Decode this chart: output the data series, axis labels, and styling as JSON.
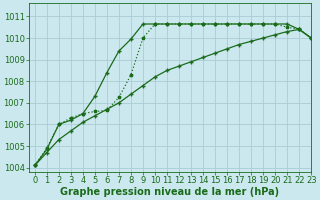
{
  "title": "Graphe pression niveau de la mer (hPa)",
  "background_color": "#cce8ef",
  "grid_color": "#aaccd4",
  "xlim": [
    -0.5,
    23
  ],
  "ylim": [
    1003.8,
    1011.6
  ],
  "yticks": [
    1004,
    1005,
    1006,
    1007,
    1008,
    1009,
    1010,
    1011
  ],
  "xticks": [
    0,
    1,
    2,
    3,
    4,
    5,
    6,
    7,
    8,
    9,
    10,
    11,
    12,
    13,
    14,
    15,
    16,
    17,
    18,
    19,
    20,
    21,
    22,
    23
  ],
  "line_dotted_x": [
    0,
    1,
    2,
    3,
    4,
    5,
    6,
    7,
    8,
    9,
    10,
    11,
    12,
    13,
    14,
    15,
    16,
    17,
    18,
    19,
    20,
    21,
    22,
    23
  ],
  "line_dotted_y": [
    1004.1,
    1004.9,
    1006.0,
    1006.3,
    1006.5,
    1006.6,
    1006.65,
    1007.25,
    1008.3,
    1010.0,
    1010.65,
    1010.65,
    1010.65,
    1010.65,
    1010.65,
    1010.65,
    1010.65,
    1010.65,
    1010.65,
    1010.65,
    1010.65,
    1010.5,
    1010.4,
    1010.0
  ],
  "line_solid1_x": [
    0,
    1,
    2,
    3,
    4,
    5,
    6,
    7,
    8,
    9,
    10,
    11,
    12,
    13,
    14,
    15,
    16,
    17,
    18,
    19,
    20,
    21,
    22,
    23
  ],
  "line_solid1_y": [
    1004.1,
    1004.85,
    1006.0,
    1006.2,
    1006.5,
    1007.3,
    1008.4,
    1009.4,
    1009.95,
    1010.65,
    1010.65,
    1010.65,
    1010.65,
    1010.65,
    1010.65,
    1010.65,
    1010.65,
    1010.65,
    1010.65,
    1010.65,
    1010.65,
    1010.65,
    1010.4,
    1010.0
  ],
  "line_diagonal_x": [
    0,
    1,
    2,
    3,
    4,
    5,
    6,
    7,
    8,
    9,
    10,
    11,
    12,
    13,
    14,
    15,
    16,
    17,
    18,
    19,
    20,
    21,
    22,
    23
  ],
  "line_diagonal_y": [
    1004.1,
    1004.7,
    1005.3,
    1005.7,
    1006.1,
    1006.4,
    1006.7,
    1007.0,
    1007.4,
    1007.8,
    1008.2,
    1008.5,
    1008.7,
    1008.9,
    1009.1,
    1009.3,
    1009.5,
    1009.7,
    1009.85,
    1010.0,
    1010.15,
    1010.3,
    1010.4,
    1010.0
  ],
  "line_color": "#1a6b1a",
  "linewidth": 0.9,
  "fontsize_label": 7.0,
  "fontsize_tick": 6.0
}
